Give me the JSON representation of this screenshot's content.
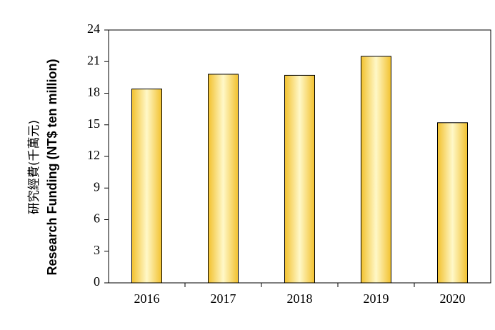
{
  "chart_data": {
    "type": "bar",
    "ylabel": [
      "研究經費(千萬元)",
      "Research Funding (NT$ ten million)"
    ],
    "categories": [
      "2016",
      "2017",
      "2018",
      "2019",
      "2020"
    ],
    "values": [
      18.4,
      19.8,
      19.7,
      21.5,
      15.2
    ],
    "color": "#f2c12e",
    "ylim": [
      0,
      24
    ],
    "yticks": [
      0,
      3,
      6,
      9,
      12,
      15,
      18,
      21,
      24
    ]
  }
}
